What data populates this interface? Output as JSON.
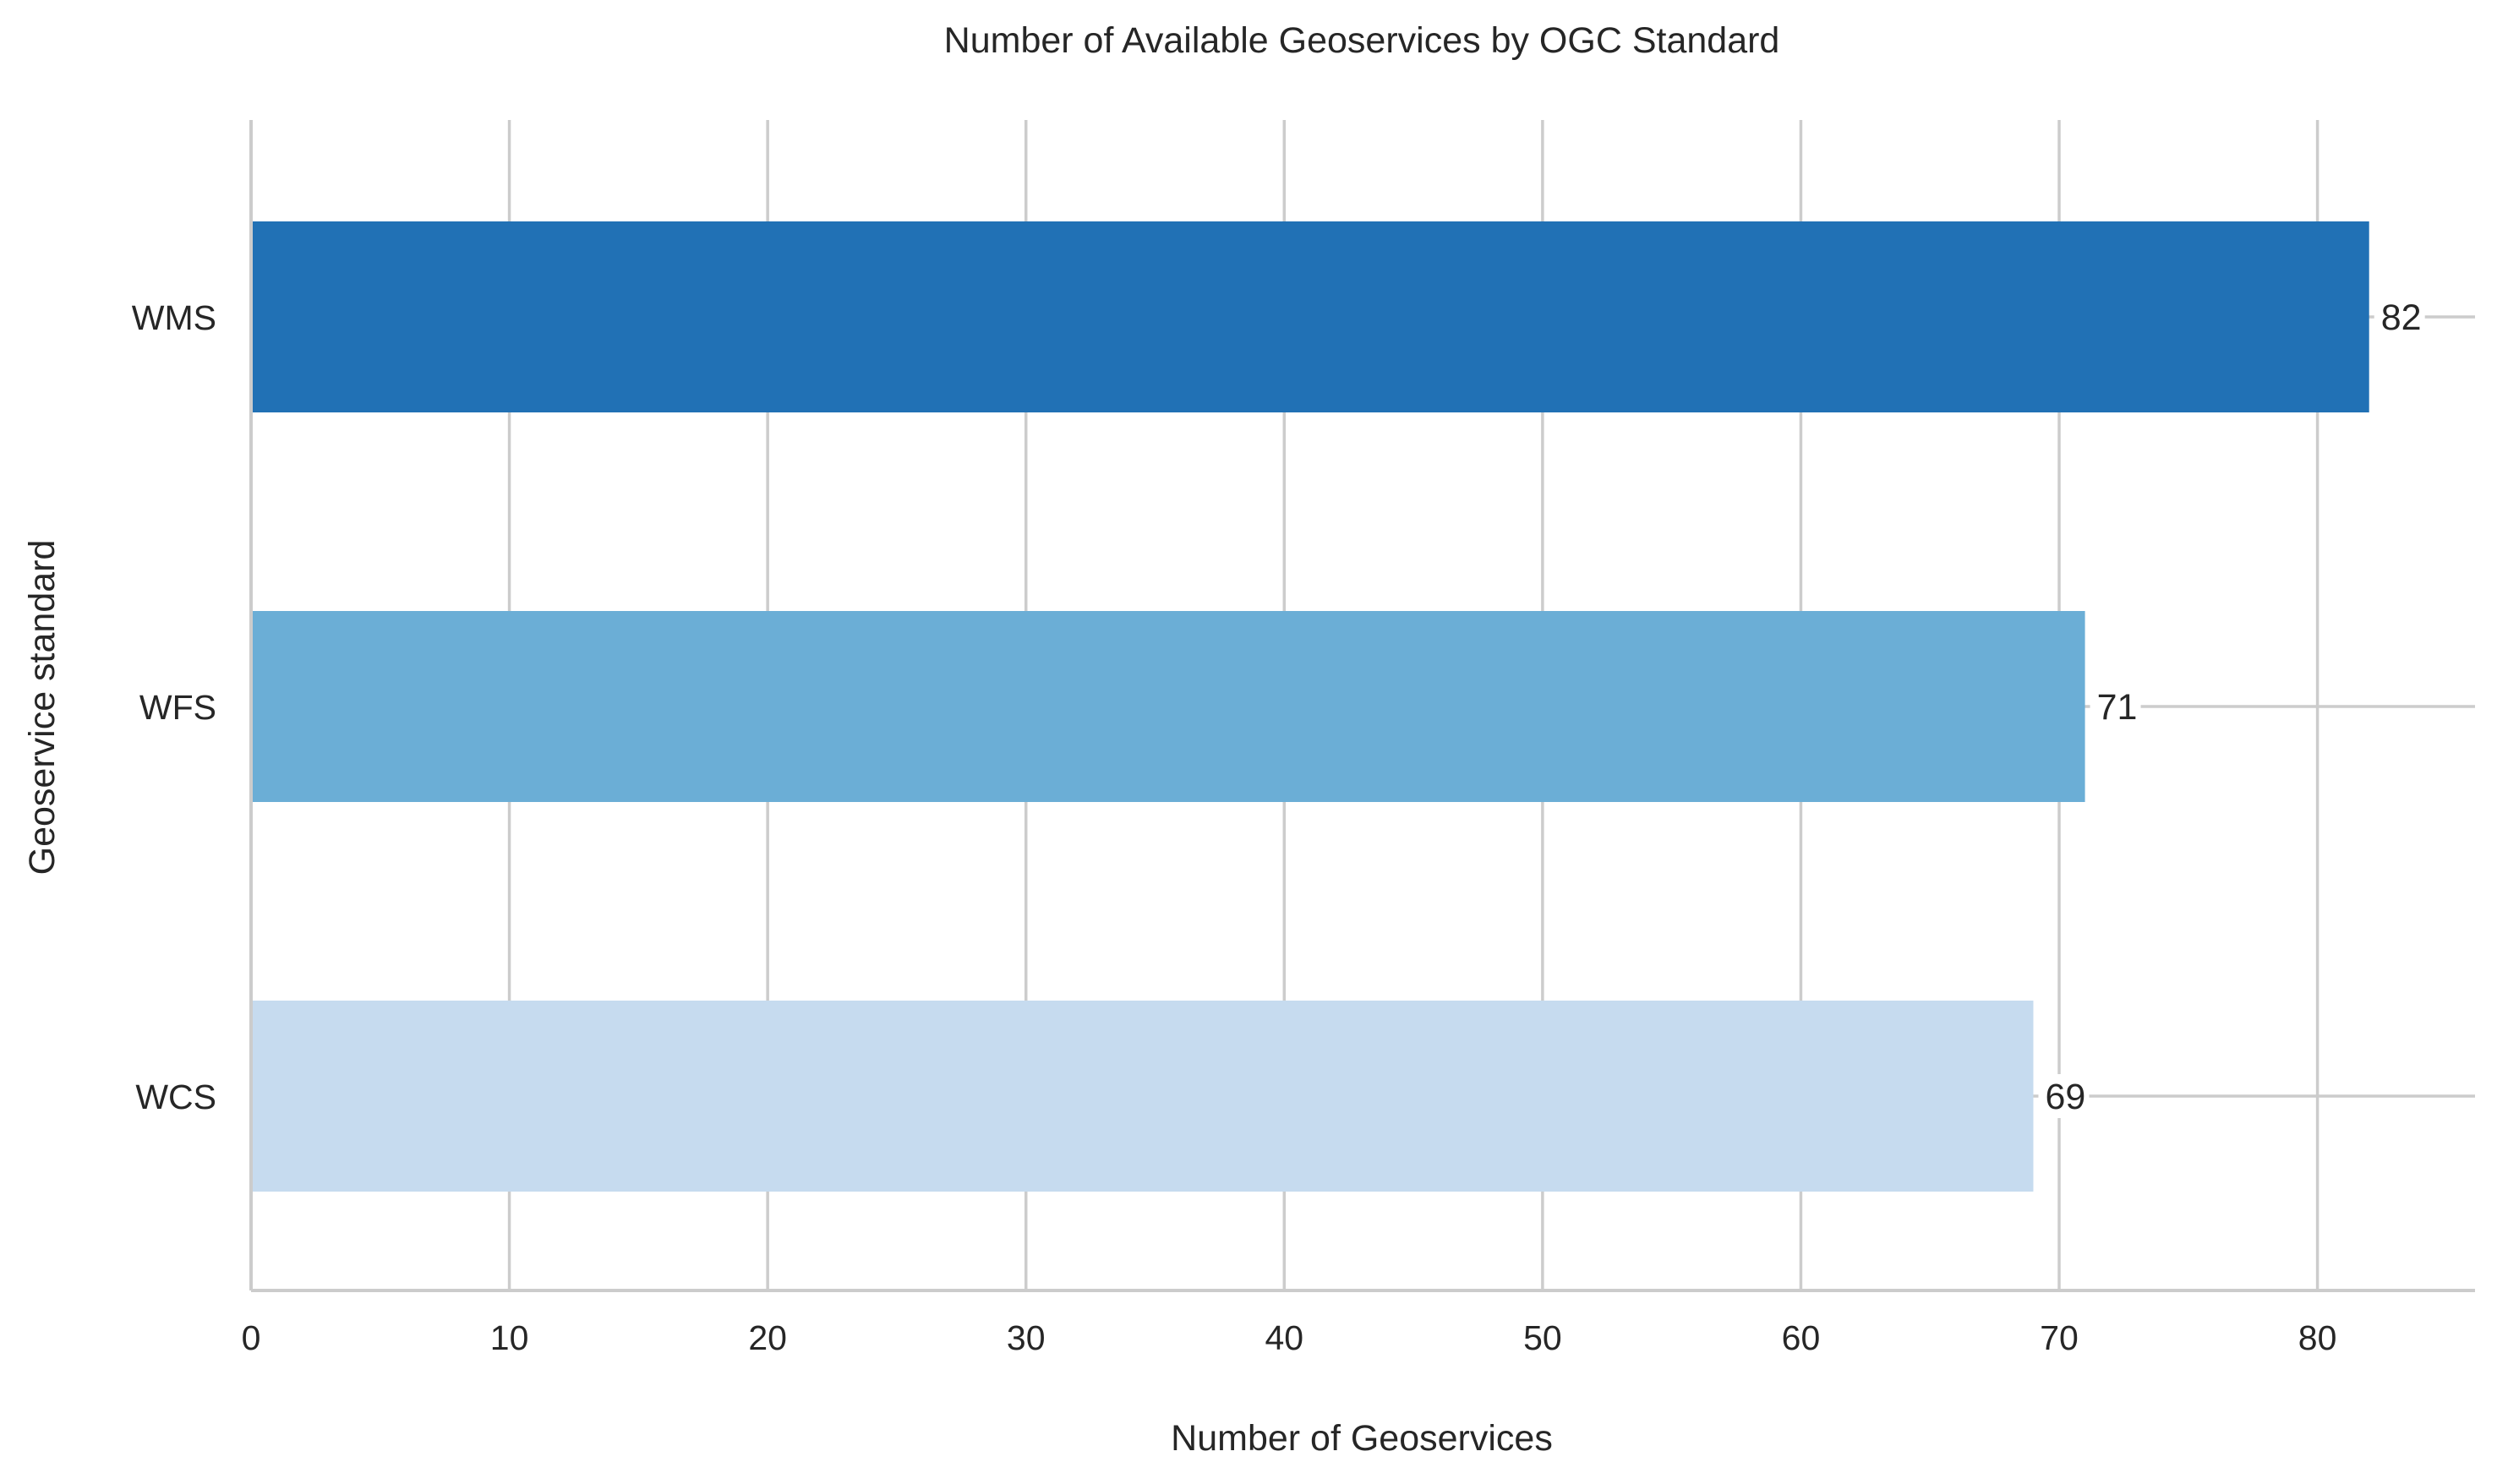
{
  "chart_data": {
    "type": "bar",
    "orientation": "horizontal",
    "title": "Number of Available Geoservices by OGC Standard",
    "xlabel": "Number of Geoservices",
    "ylabel": "Geoservice standard",
    "categories": [
      "WMS",
      "WFS",
      "WCS"
    ],
    "values": [
      82,
      71,
      69
    ],
    "bar_colors": [
      "#2171b5",
      "#6baed6",
      "#c6dbef"
    ],
    "data_labels": [
      "82",
      "71",
      "69"
    ],
    "xlim": [
      0,
      86.1
    ],
    "xticks": [
      0,
      10,
      20,
      30,
      40,
      50,
      60,
      70,
      80
    ],
    "grid": true
  }
}
